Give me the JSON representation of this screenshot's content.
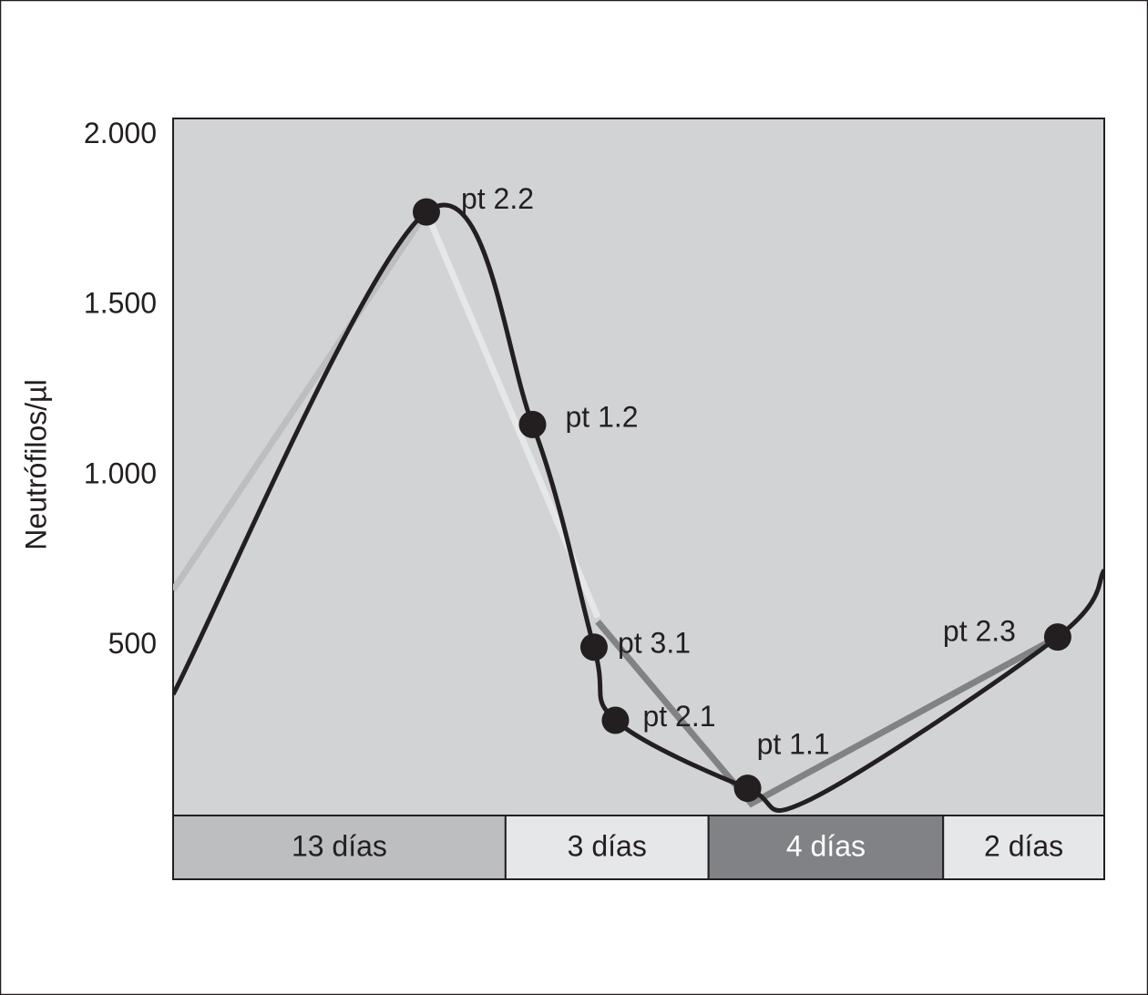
{
  "chart_data": {
    "type": "line",
    "y_label": "Neutrófilos/µl",
    "xlim": [
      0,
      100
    ],
    "ylim": [
      0,
      2050
    ],
    "yticks": [
      {
        "value": 500,
        "label": "500"
      },
      {
        "value": 1000,
        "label": "1.000"
      },
      {
        "value": 1500,
        "label": "1.500"
      },
      {
        "value": 2000,
        "label": "2.000"
      }
    ],
    "series": [
      {
        "name": "curve",
        "color": "#231f20",
        "x": [
          0,
          27.2,
          38.6,
          45.2,
          47.5,
          61.7,
          68.5,
          95,
          100
        ],
        "values": [
          356,
          1775,
          1150,
          495,
          280,
          80,
          48,
          525,
          722
        ]
      },
      {
        "name": "phase-1",
        "color": "#bcbec0",
        "x": [
          0,
          27.2
        ],
        "values": [
          663,
          1775
        ]
      },
      {
        "name": "phase-2",
        "color": "#e6e7e8",
        "x": [
          27.2,
          45.6
        ],
        "values": [
          1775,
          583
        ]
      },
      {
        "name": "phase-3",
        "color": "#808285",
        "x": [
          45.6,
          62.1,
          95
        ],
        "values": [
          570,
          35,
          525
        ]
      }
    ],
    "points": [
      {
        "label": "pt 2.2",
        "x": 27.2,
        "value": 1775
      },
      {
        "label": "pt 1.2",
        "x": 38.6,
        "value": 1150
      },
      {
        "label": "pt 3.1",
        "x": 45.2,
        "value": 495
      },
      {
        "label": "pt 2.1",
        "x": 47.5,
        "value": 280
      },
      {
        "label": "pt 1.1",
        "x": 61.7,
        "value": 80
      },
      {
        "label": "pt 2.3",
        "x": 95,
        "value": 525
      }
    ],
    "bands": [
      {
        "label": "13 días",
        "start": 0,
        "end": 35.7,
        "color": "#bcbec0",
        "text_color": "#231f20"
      },
      {
        "label": "3 días",
        "start": 35.7,
        "end": 57.5,
        "color": "#e6e7e8",
        "text_color": "#231f20"
      },
      {
        "label": "4 días",
        "start": 57.5,
        "end": 82.7,
        "color": "#808285",
        "text_color": "#ffffff"
      },
      {
        "label": "2 días",
        "start": 82.7,
        "end": 100,
        "color": "#e6e7e8",
        "text_color": "#231f20"
      }
    ]
  }
}
